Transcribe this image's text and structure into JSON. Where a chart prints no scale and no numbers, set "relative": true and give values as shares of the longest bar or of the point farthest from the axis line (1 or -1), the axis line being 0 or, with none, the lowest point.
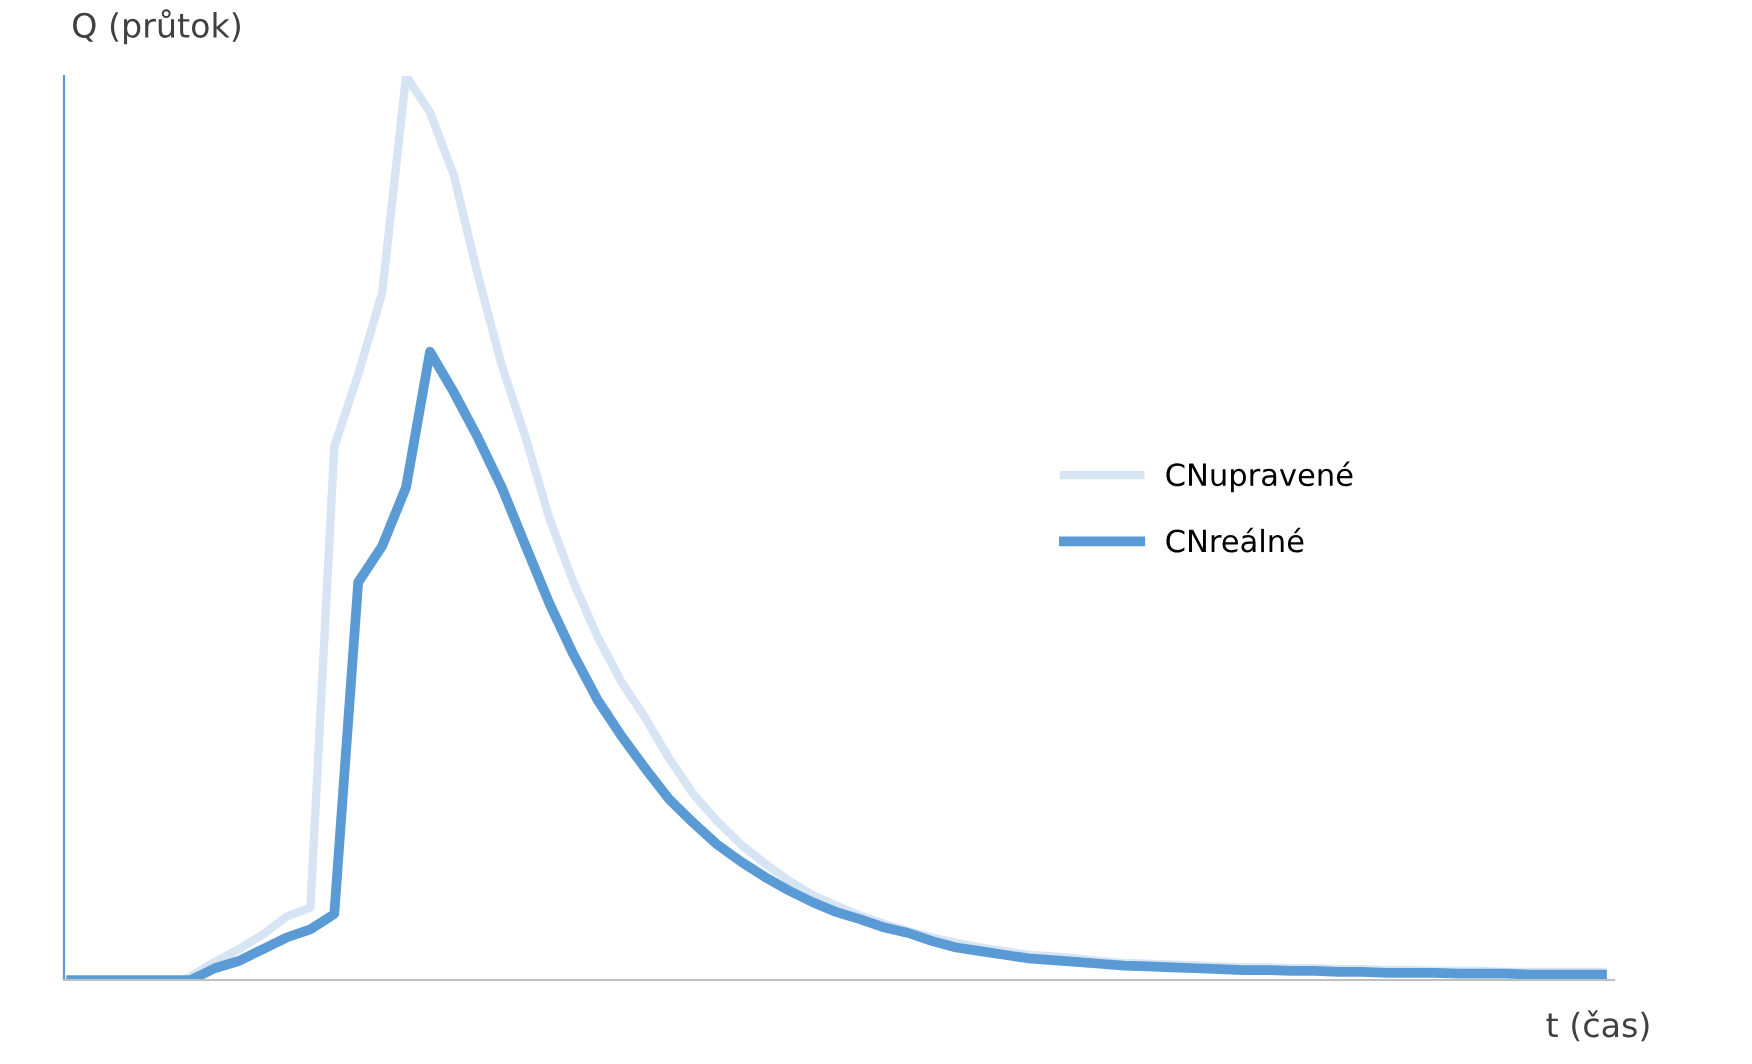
{
  "chart_data": {
    "type": "line",
    "relative": true,
    "xlabel": "t (čas)",
    "ylabel": "Q (průtok)",
    "legend": "right",
    "marker": "none",
    "line_style": "solid",
    "categories": [
      null,
      null,
      null,
      null,
      null,
      null,
      null,
      null,
      null,
      null,
      null,
      null,
      null,
      null,
      null,
      null,
      null,
      null,
      null,
      null,
      null,
      null,
      null,
      null,
      null,
      null,
      null,
      null,
      null,
      null,
      null,
      null,
      null,
      null,
      null,
      null,
      null,
      null,
      null,
      null,
      null,
      null,
      null,
      null,
      null,
      null,
      null,
      null,
      null,
      null,
      null,
      null,
      null,
      null,
      null,
      null,
      null,
      null,
      null,
      null,
      null,
      null,
      null,
      null,
      null
    ],
    "series": [
      {
        "name": "CNupravené",
        "color": "#d6e4f3",
        "values": [
          null,
          null,
          null,
          null,
          null,
          0.004,
          0.02,
          0.034,
          0.05,
          0.07,
          0.08,
          0.59,
          0.67,
          0.76,
          1,
          0.96,
          0.89,
          0.78,
          0.68,
          0.6,
          0.51,
          0.44,
          0.38,
          0.33,
          0.29,
          0.245,
          0.206,
          0.176,
          0.15,
          0.129,
          0.11,
          0.094,
          0.082,
          0.071,
          0.062,
          0.054,
          0.047,
          0.041,
          0.036,
          0.032,
          0.028,
          0.026,
          0.024,
          0.021,
          0.019,
          0.018,
          0.017,
          0.016,
          0.015,
          0.014,
          0.014,
          0.013,
          0.013,
          0.012,
          0.012,
          0.011,
          0.011,
          0.01,
          0.01,
          0.01,
          0.009,
          0.009,
          0.009,
          0.009,
          0.009
        ]
      },
      {
        "name": "CNreálné",
        "color": "#5b9bd5",
        "values": [
          0,
          0,
          0,
          0,
          0,
          0,
          0.013,
          0.021,
          0.034,
          0.047,
          0.056,
          0.073,
          0.44,
          0.48,
          0.545,
          0.695,
          0.65,
          0.6,
          0.545,
          0.48,
          0.416,
          0.36,
          0.31,
          0.27,
          0.234,
          0.2,
          0.174,
          0.15,
          0.131,
          0.114,
          0.099,
          0.086,
          0.075,
          0.067,
          0.058,
          0.052,
          0.043,
          0.036,
          0.032,
          0.028,
          0.024,
          0.022,
          0.02,
          0.018,
          0.016,
          0.015,
          0.014,
          0.013,
          0.012,
          0.011,
          0.011,
          0.01,
          0.01,
          0.009,
          0.009,
          0.008,
          0.008,
          0.008,
          0.007,
          0.007,
          0.007,
          0.006,
          0.006,
          0.006,
          0.006
        ]
      }
    ]
  }
}
